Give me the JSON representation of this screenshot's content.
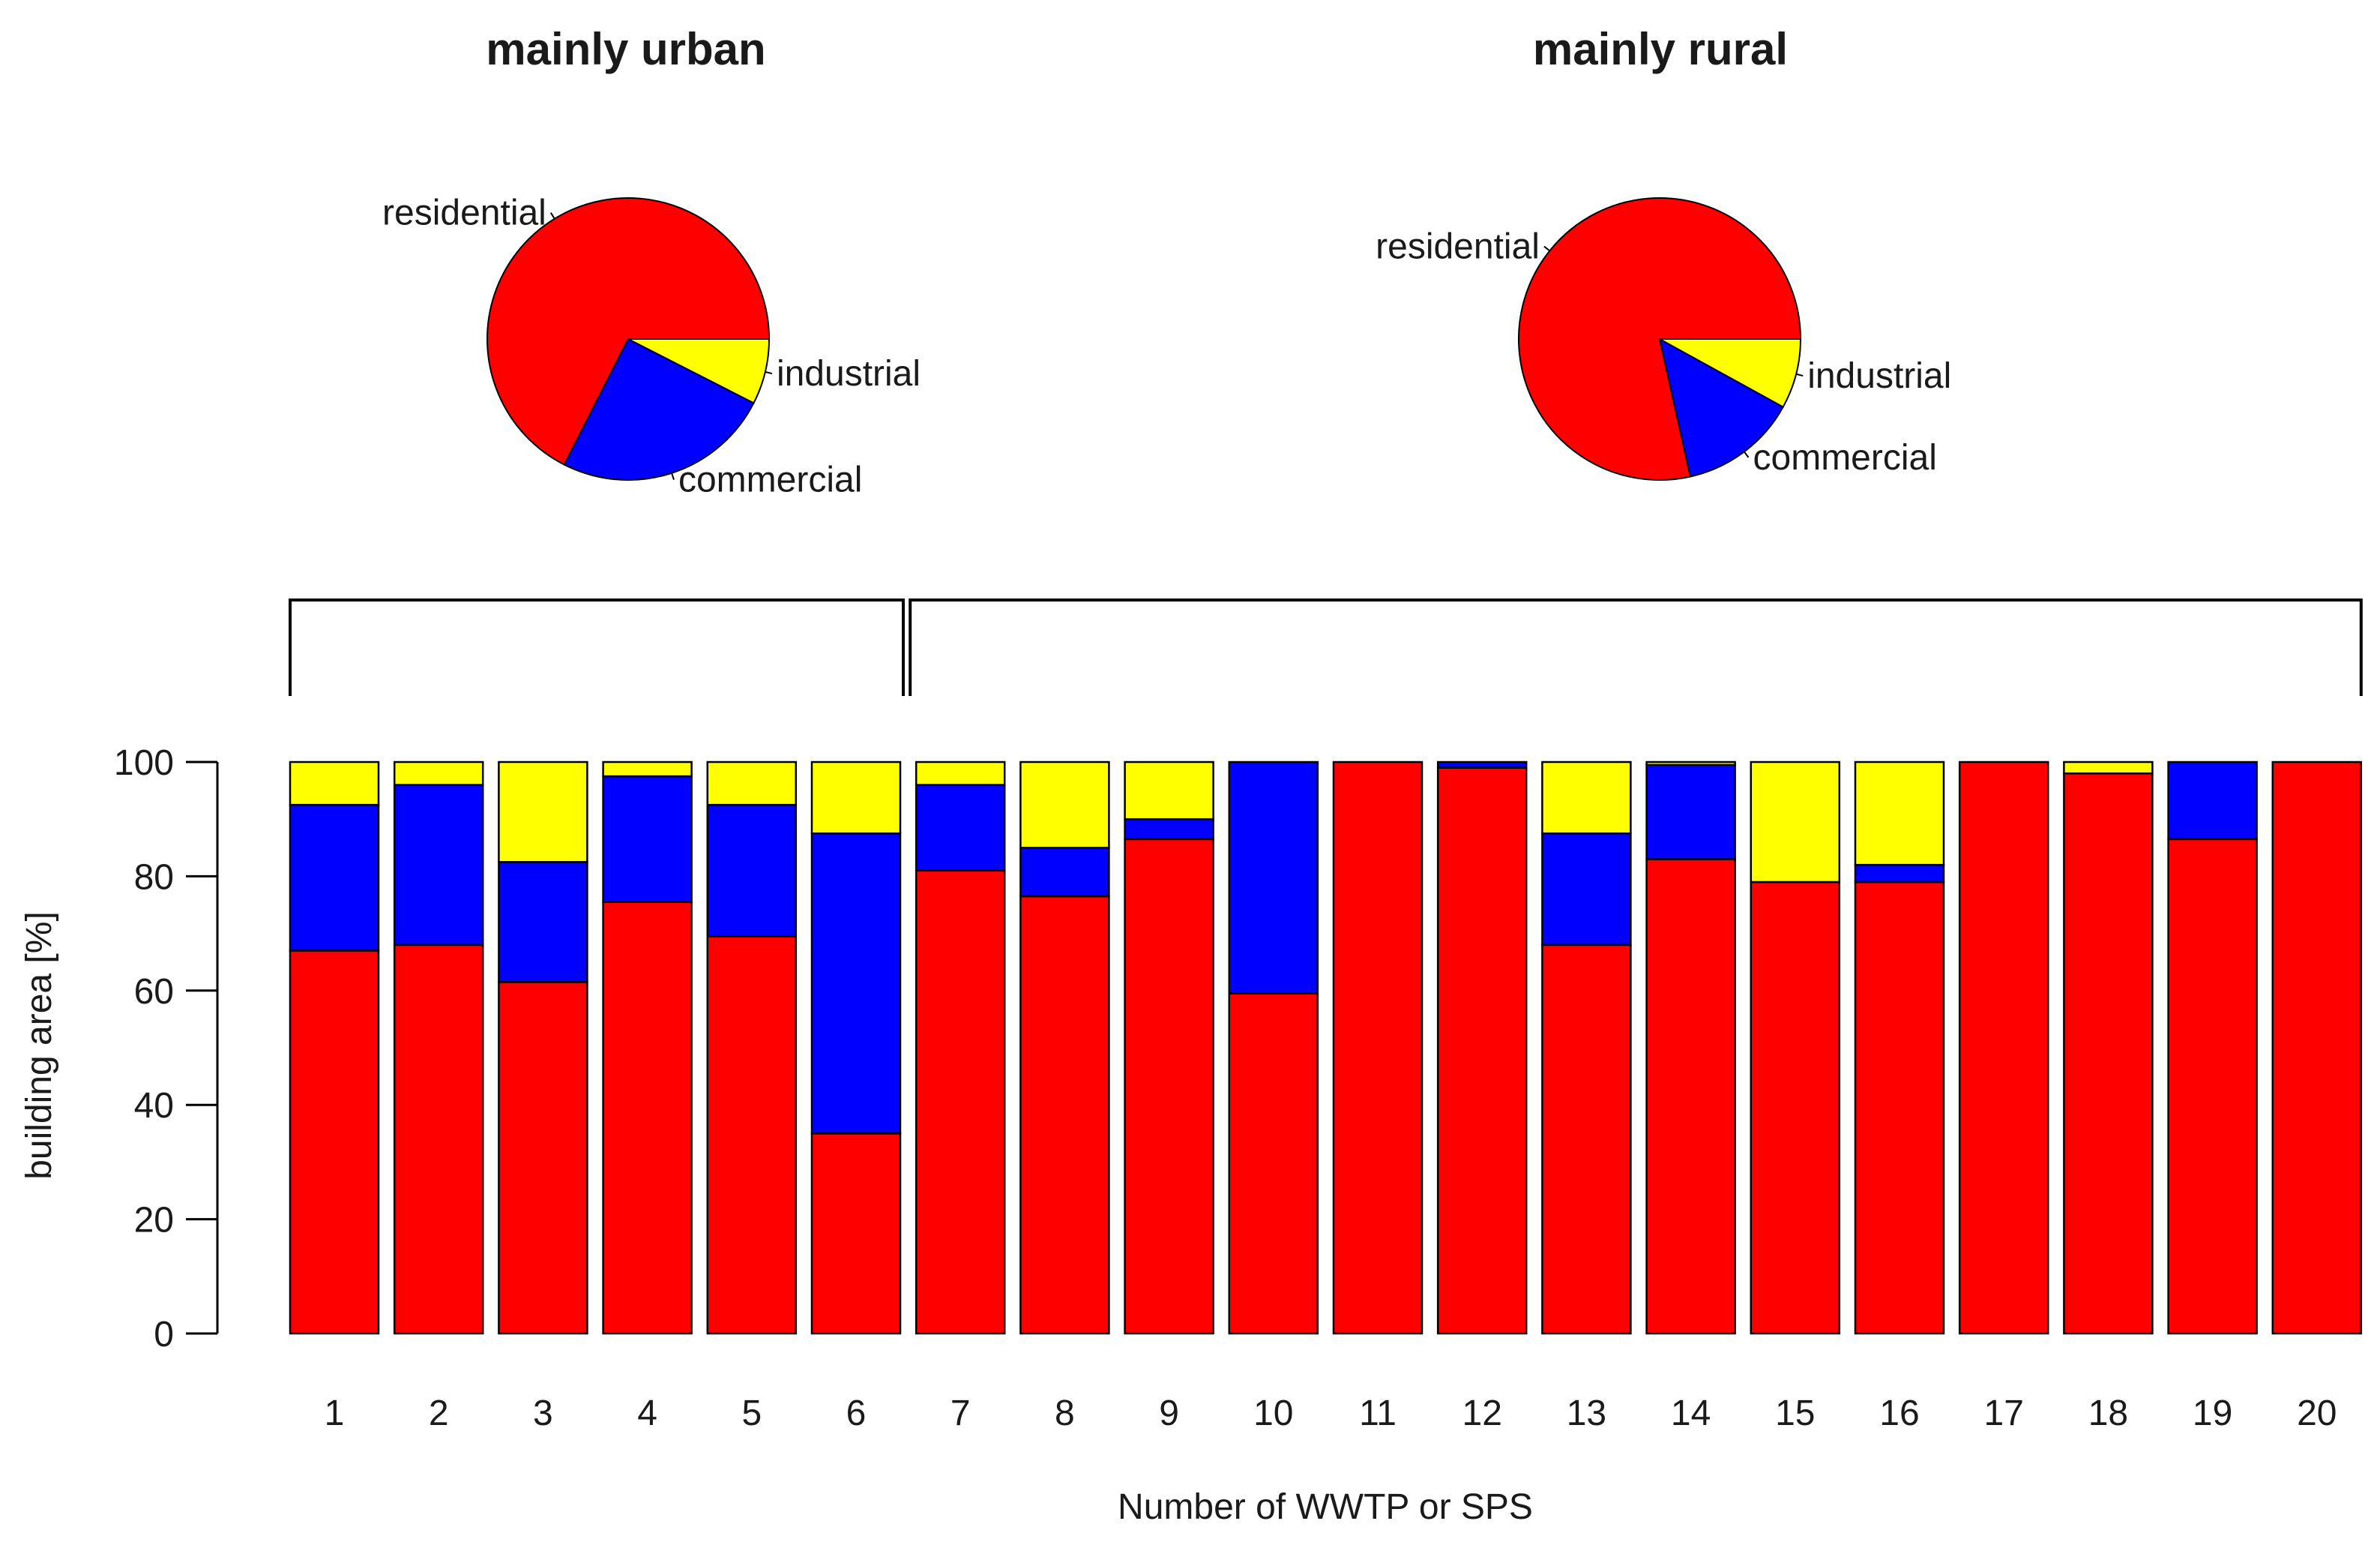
{
  "chart_data": [
    {
      "type": "pie",
      "title": "mainly urban",
      "slices": [
        {
          "label": "residential",
          "value": 67.5,
          "color": "#ff0000"
        },
        {
          "label": "commercial",
          "value": 25.0,
          "color": "#0000ff"
        },
        {
          "label": "industrial",
          "value": 7.5,
          "color": "#ffff00"
        }
      ]
    },
    {
      "type": "pie",
      "title": "mainly rural",
      "slices": [
        {
          "label": "residential",
          "value": 78.5,
          "color": "#ff0000"
        },
        {
          "label": "commercial",
          "value": 13.5,
          "color": "#0000ff"
        },
        {
          "label": "industrial",
          "value": 8.0,
          "color": "#ffff00"
        }
      ]
    },
    {
      "type": "bar",
      "stacked": true,
      "categories": [
        "1",
        "2",
        "3",
        "4",
        "5",
        "6",
        "7",
        "8",
        "9",
        "10",
        "11",
        "12",
        "13",
        "14",
        "15",
        "16",
        "17",
        "18",
        "19",
        "20"
      ],
      "series": [
        {
          "name": "residential",
          "color": "#ff0000",
          "values": [
            67,
            68,
            61.5,
            75.5,
            69.5,
            35,
            81,
            76.5,
            86.5,
            59.5,
            100,
            99,
            68,
            83,
            79,
            79,
            100,
            98,
            86.5,
            100
          ]
        },
        {
          "name": "commercial",
          "color": "#0000ff",
          "values": [
            25.5,
            28,
            21,
            22,
            23,
            52.5,
            15,
            8.5,
            3.5,
            40.5,
            0,
            1,
            19.5,
            16.5,
            0,
            3,
            0,
            0,
            13.5,
            0
          ]
        },
        {
          "name": "industrial",
          "color": "#ffff00",
          "values": [
            7.5,
            4,
            17.5,
            2.5,
            7.5,
            12.5,
            4,
            15,
            10,
            0,
            0,
            0,
            12.5,
            0.5,
            21,
            18,
            0,
            2,
            0,
            0
          ]
        }
      ],
      "groups": [
        {
          "title": "mainly urban",
          "from": 1,
          "to": 6
        },
        {
          "title": "mainly rural",
          "from": 7,
          "to": 20
        }
      ],
      "xlabel": "Number of WWTP or SPS",
      "ylabel": "building area [%]",
      "ylim": [
        0,
        100
      ],
      "yticks": [
        0,
        20,
        40,
        60,
        80,
        100
      ],
      "grid": false,
      "legend": "none"
    }
  ]
}
